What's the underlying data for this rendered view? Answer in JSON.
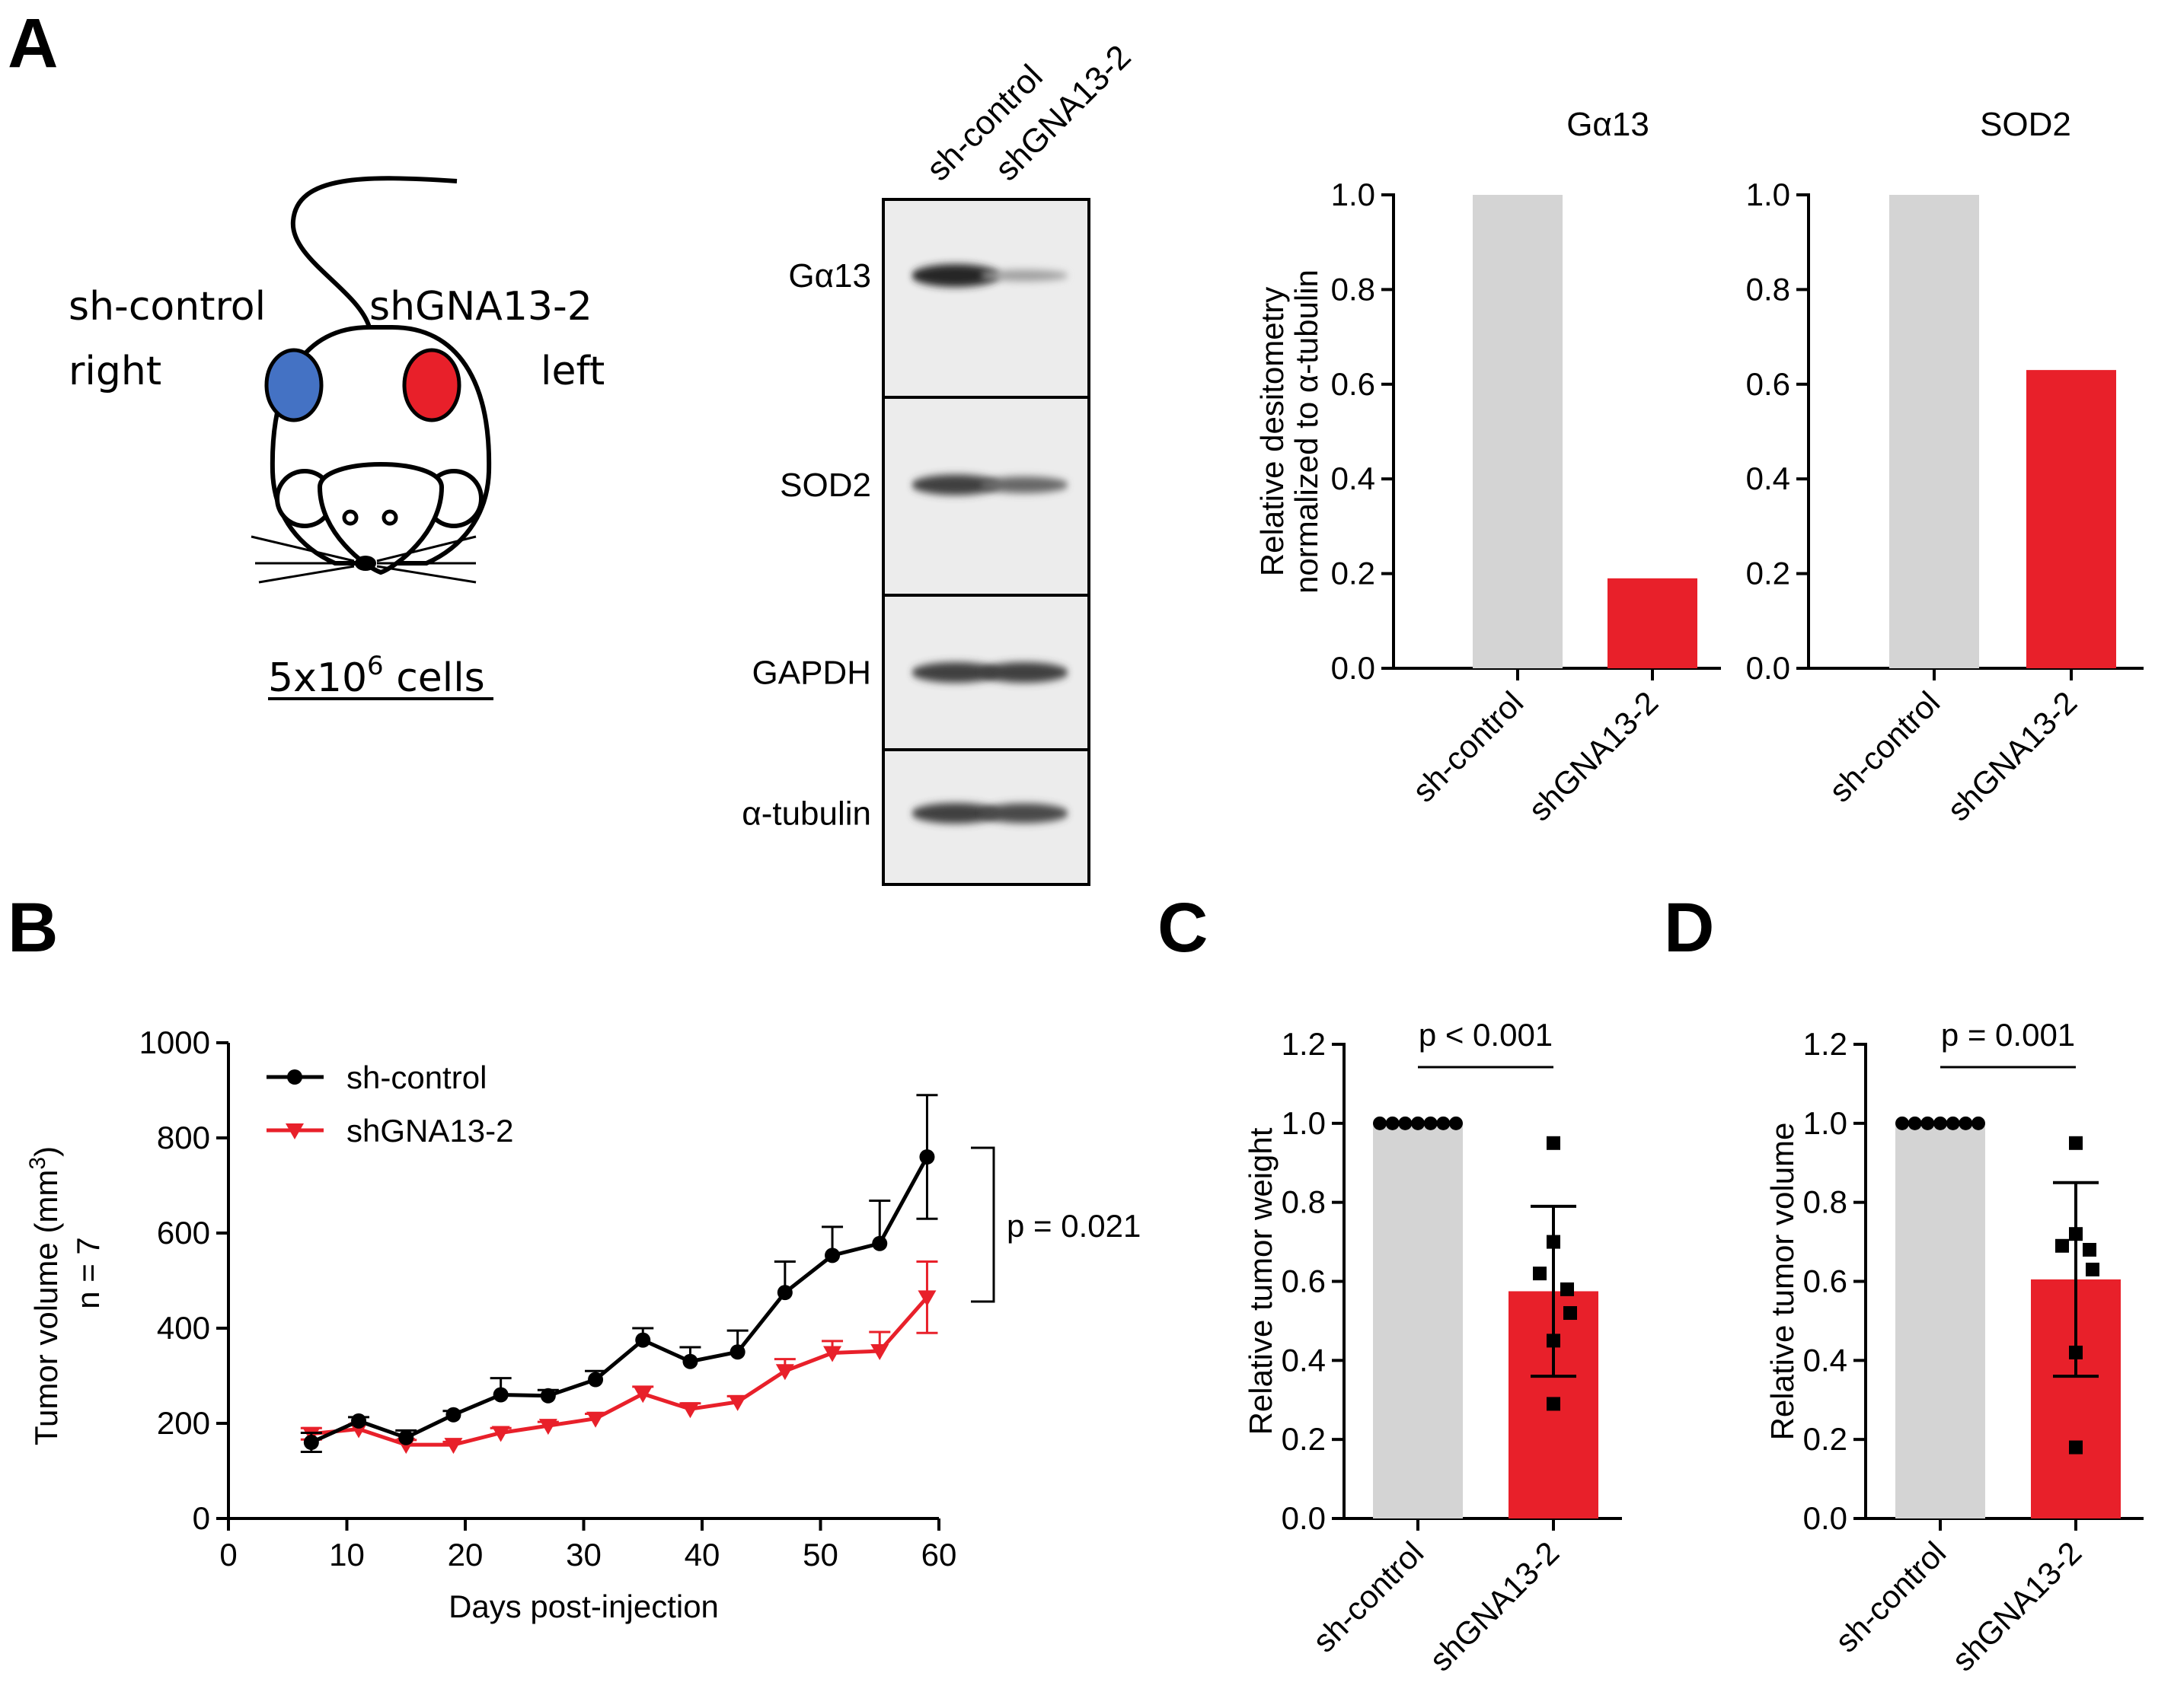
{
  "panels": {
    "a": "A",
    "b": "B",
    "c": "C",
    "d": "D"
  },
  "mouse_diagram": {
    "left_label_top": "sh-control",
    "left_label_bottom": "right",
    "right_label_top": "shGNA13-2",
    "right_label_bottom": "left",
    "cells_base": "5x10",
    "cells_exp": "6",
    "cells_suffix": " cells",
    "colors": {
      "control_tumor": "#4472c4",
      "knockdown_tumor": "#e8202a"
    }
  },
  "western_blot": {
    "lane_labels": [
      "sh-control",
      "shGNA13-2"
    ],
    "bands": [
      {
        "label": "Gα13",
        "intensity": [
          1.0,
          0.25
        ]
      },
      {
        "label": "SOD2",
        "intensity": [
          0.85,
          0.6
        ]
      },
      {
        "label": "GAPDH",
        "intensity": [
          0.85,
          0.85
        ]
      },
      {
        "label": "α-tubulin",
        "intensity": [
          0.85,
          0.8
        ]
      }
    ]
  },
  "chart_data": [
    {
      "id": "a_ga13",
      "type": "bar",
      "title": "Gα13",
      "categories": [
        "sh-control",
        "shGNA13-2"
      ],
      "values": [
        1.0,
        0.19
      ],
      "colors": [
        "#d4d4d4",
        "#e8202a"
      ],
      "ylabel_line1": "Relative desitometry",
      "ylabel_line2": "normalized to α-tubulin",
      "ylim": [
        0,
        1.0
      ],
      "yticks": [
        "0.0",
        "0.2",
        "0.4",
        "0.6",
        "0.8",
        "1.0"
      ]
    },
    {
      "id": "a_sod2",
      "type": "bar",
      "title": "SOD2",
      "categories": [
        "sh-control",
        "shGNA13-2"
      ],
      "values": [
        1.0,
        0.63
      ],
      "colors": [
        "#d4d4d4",
        "#e8202a"
      ],
      "ylim": [
        0,
        1.0
      ],
      "yticks": [
        "0.0",
        "0.2",
        "0.4",
        "0.6",
        "0.8",
        "1.0"
      ]
    },
    {
      "id": "b_growth",
      "type": "line",
      "xlabel": "Days post-injection",
      "ylabel_line1": "Tumor volume (mm",
      "ylabel_sup": "3",
      "ylabel_close": ")",
      "ylabel_line2": "n = 7",
      "xlim": [
        0,
        60
      ],
      "ylim": [
        0,
        1000
      ],
      "xticks": [
        "0",
        "10",
        "20",
        "30",
        "40",
        "50",
        "60"
      ],
      "yticks": [
        "0",
        "200",
        "400",
        "600",
        "800",
        "1000"
      ],
      "x": [
        7,
        11,
        15,
        19,
        23,
        27,
        31,
        35,
        39,
        43,
        47,
        51,
        55,
        59
      ],
      "series": [
        {
          "name": "sh-control",
          "color": "#000000",
          "marker": "circle",
          "values": [
            160,
            205,
            170,
            218,
            260,
            258,
            292,
            375,
            330,
            350,
            475,
            553,
            578,
            760
          ],
          "errors": [
            20,
            8,
            15,
            8,
            35,
            12,
            18,
            25,
            30,
            45,
            65,
            60,
            90,
            130
          ]
        },
        {
          "name": "shGNA13-2",
          "color": "#e8202a",
          "marker": "triangle-down",
          "values": [
            178,
            188,
            155,
            155,
            180,
            195,
            210,
            262,
            230,
            245,
            310,
            348,
            352,
            465
          ],
          "errors": [
            12,
            10,
            10,
            6,
            10,
            8,
            10,
            15,
            12,
            12,
            25,
            25,
            40,
            75
          ]
        }
      ],
      "annotation": "p = 0.021"
    },
    {
      "id": "c_weight",
      "type": "bar",
      "ylabel": "Relative tumor weight",
      "categories": [
        "sh-control",
        "shGNA13-2"
      ],
      "values": [
        1.0,
        0.575
      ],
      "errors": [
        0,
        0.215
      ],
      "colors": [
        "#d4d4d4",
        "#e8202a"
      ],
      "points_control": [
        1,
        1,
        1,
        1,
        1,
        1,
        1
      ],
      "points_knockdown": [
        0.95,
        0.7,
        0.62,
        0.58,
        0.52,
        0.45,
        0.29
      ],
      "ylim": [
        0,
        1.2
      ],
      "yticks": [
        "0.0",
        "0.2",
        "0.4",
        "0.6",
        "0.8",
        "1.0",
        "1.2"
      ],
      "annotation": "p < 0.001"
    },
    {
      "id": "d_volume",
      "type": "bar",
      "ylabel": "Relative tumor volume",
      "categories": [
        "sh-control",
        "shGNA13-2"
      ],
      "values": [
        1.0,
        0.605
      ],
      "errors": [
        0,
        0.245
      ],
      "colors": [
        "#d4d4d4",
        "#e8202a"
      ],
      "points_control": [
        1,
        1,
        1,
        1,
        1,
        1,
        1
      ],
      "points_knockdown": [
        0.95,
        0.72,
        0.69,
        0.68,
        0.63,
        0.42,
        0.18
      ],
      "ylim": [
        0,
        1.2
      ],
      "yticks": [
        "0.0",
        "0.2",
        "0.4",
        "0.6",
        "0.8",
        "1.0",
        "1.2"
      ],
      "annotation": "p = 0.001"
    }
  ]
}
